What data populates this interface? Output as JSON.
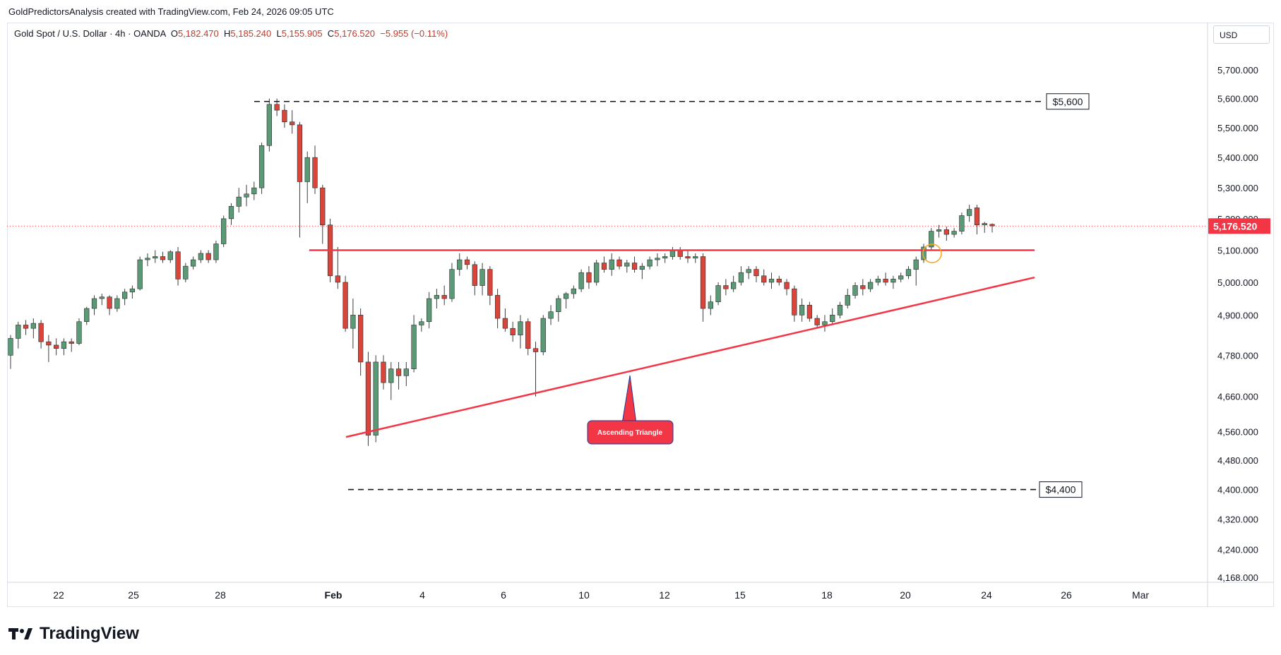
{
  "header": {
    "attribution": "GoldPredictorsAnalysis created with TradingView.com, Feb 24, 2026 09:05 UTC"
  },
  "legend": {
    "symbol": "Gold Spot / U.S. Dollar · 4h · OANDA",
    "open_label": "O",
    "open": "5,182.470",
    "high_label": "H",
    "high": "5,185.240",
    "low_label": "L",
    "low": "5,155.905",
    "close_label": "C",
    "close": "5,176.520",
    "change": "−5.955 (−0.11%)"
  },
  "currency": "USD",
  "brand": {
    "name": "TradingView"
  },
  "colors": {
    "up": "#5b9a76",
    "down": "#d9453a",
    "trend": "#f23645",
    "grid": "#e0e3eb",
    "price_tag": "#f23645"
  },
  "chart_data": {
    "type": "candlestick",
    "timeframe": "4h",
    "instrument": "Gold Spot / U.S. Dollar",
    "x_tick_labels": [
      "22",
      "25",
      "28",
      "Feb",
      "4",
      "6",
      "10",
      "12",
      "15",
      "18",
      "20",
      "24",
      "26",
      "Mar"
    ],
    "y_tick_labels": [
      "5,700.000",
      "5,600.000",
      "5,500.000",
      "5,400.000",
      "5,300.000",
      "5,200.000",
      "5,100.000",
      "5,000.000",
      "4,900.000",
      "4,780.000",
      "4,660.000",
      "4,560.000",
      "4,480.000",
      "4,400.000",
      "4,320.000",
      "4,240.000",
      "4,168.000"
    ],
    "y_ticks": [
      5700,
      5600,
      5500,
      5400,
      5300,
      5200,
      5100,
      5000,
      4900,
      4780,
      4660,
      4560,
      4480,
      4400,
      4320,
      4240,
      4168
    ],
    "scale": "log",
    "ylim": [
      4168,
      5760
    ],
    "current_price": 5176.52,
    "current_price_label": "5,176.520",
    "levels": [
      {
        "label": "$5,600",
        "value": 5590
      },
      {
        "label": "$4,400",
        "value": 4400
      }
    ],
    "horizontal_resistance": 5100,
    "pattern_label": "Ascending Triangle",
    "candles": [
      [
        4780,
        4840,
        4740,
        4830
      ],
      [
        4830,
        4880,
        4800,
        4870
      ],
      [
        4870,
        4885,
        4840,
        4860
      ],
      [
        4860,
        4890,
        4830,
        4875
      ],
      [
        4875,
        4885,
        4800,
        4820
      ],
      [
        4820,
        4840,
        4760,
        4810
      ],
      [
        4810,
        4830,
        4780,
        4800
      ],
      [
        4800,
        4830,
        4780,
        4820
      ],
      [
        4820,
        4830,
        4790,
        4815
      ],
      [
        4815,
        4890,
        4810,
        4880
      ],
      [
        4880,
        4925,
        4870,
        4920
      ],
      [
        4920,
        4960,
        4900,
        4950
      ],
      [
        4950,
        4965,
        4930,
        4955
      ],
      [
        4955,
        4960,
        4900,
        4920
      ],
      [
        4920,
        4960,
        4910,
        4950
      ],
      [
        4950,
        4980,
        4930,
        4970
      ],
      [
        4970,
        4990,
        4950,
        4980
      ],
      [
        4980,
        5080,
        4975,
        5070
      ],
      [
        5070,
        5090,
        5050,
        5075
      ],
      [
        5075,
        5100,
        5060,
        5080
      ],
      [
        5080,
        5095,
        5060,
        5070
      ],
      [
        5070,
        5100,
        5060,
        5095
      ],
      [
        5095,
        5110,
        4990,
        5010
      ],
      [
        5010,
        5060,
        5000,
        5050
      ],
      [
        5050,
        5080,
        5040,
        5070
      ],
      [
        5070,
        5100,
        5060,
        5090
      ],
      [
        5090,
        5100,
        5060,
        5070
      ],
      [
        5070,
        5130,
        5060,
        5120
      ],
      [
        5120,
        5210,
        5110,
        5200
      ],
      [
        5200,
        5250,
        5180,
        5240
      ],
      [
        5240,
        5300,
        5220,
        5270
      ],
      [
        5270,
        5310,
        5240,
        5280
      ],
      [
        5280,
        5320,
        5260,
        5300
      ],
      [
        5300,
        5450,
        5280,
        5440
      ],
      [
        5440,
        5600,
        5420,
        5580
      ],
      [
        5580,
        5600,
        5540,
        5560
      ],
      [
        5560,
        5580,
        5500,
        5520
      ],
      [
        5520,
        5560,
        5480,
        5510
      ],
      [
        5510,
        5520,
        5140,
        5320
      ],
      [
        5320,
        5420,
        5250,
        5400
      ],
      [
        5400,
        5440,
        5280,
        5300
      ],
      [
        5300,
        5310,
        5120,
        5180
      ],
      [
        5180,
        5200,
        5000,
        5020
      ],
      [
        5020,
        5110,
        4980,
        5000
      ],
      [
        5000,
        5020,
        4850,
        4860
      ],
      [
        4860,
        4950,
        4800,
        4900
      ],
      [
        4900,
        4920,
        4720,
        4760
      ],
      [
        4760,
        4790,
        4520,
        4550
      ],
      [
        4550,
        4780,
        4530,
        4760
      ],
      [
        4760,
        4780,
        4680,
        4700
      ],
      [
        4700,
        4760,
        4650,
        4740
      ],
      [
        4740,
        4760,
        4680,
        4720
      ],
      [
        4720,
        4760,
        4690,
        4740
      ],
      [
        4740,
        4900,
        4730,
        4870
      ],
      [
        4870,
        4890,
        4850,
        4880
      ],
      [
        4880,
        4970,
        4860,
        4950
      ],
      [
        4950,
        4980,
        4920,
        4960
      ],
      [
        4960,
        4990,
        4930,
        4950
      ],
      [
        4950,
        5060,
        4940,
        5040
      ],
      [
        5040,
        5090,
        5020,
        5070
      ],
      [
        5070,
        5080,
        5040,
        5055
      ],
      [
        5055,
        5065,
        4960,
        4990
      ],
      [
        4990,
        5060,
        4960,
        5040
      ],
      [
        5040,
        5050,
        4930,
        4960
      ],
      [
        4960,
        4980,
        4860,
        4890
      ],
      [
        4890,
        4920,
        4850,
        4860
      ],
      [
        4860,
        4880,
        4820,
        4840
      ],
      [
        4840,
        4900,
        4800,
        4880
      ],
      [
        4880,
        4890,
        4780,
        4800
      ],
      [
        4800,
        4820,
        4660,
        4790
      ],
      [
        4790,
        4900,
        4780,
        4890
      ],
      [
        4890,
        4930,
        4870,
        4910
      ],
      [
        4910,
        4960,
        4880,
        4950
      ],
      [
        4950,
        4970,
        4920,
        4965
      ],
      [
        4965,
        4990,
        4950,
        4980
      ],
      [
        4980,
        5040,
        4970,
        5030
      ],
      [
        5030,
        5050,
        4980,
        5000
      ],
      [
        5000,
        5070,
        4990,
        5060
      ],
      [
        5060,
        5080,
        5030,
        5040
      ],
      [
        5040,
        5090,
        5020,
        5070
      ],
      [
        5070,
        5080,
        5040,
        5050
      ],
      [
        5050,
        5070,
        5030,
        5060
      ],
      [
        5060,
        5080,
        5030,
        5040
      ],
      [
        5040,
        5060,
        5010,
        5050
      ],
      [
        5050,
        5080,
        5040,
        5070
      ],
      [
        5070,
        5090,
        5050,
        5075
      ],
      [
        5075,
        5090,
        5060,
        5080
      ],
      [
        5080,
        5110,
        5070,
        5100
      ],
      [
        5100,
        5110,
        5070,
        5080
      ],
      [
        5080,
        5100,
        5060,
        5075
      ],
      [
        5075,
        5090,
        5060,
        5080
      ],
      [
        5080,
        5090,
        4880,
        4920
      ],
      [
        4920,
        4960,
        4900,
        4940
      ],
      [
        4940,
        5000,
        4930,
        4990
      ],
      [
        4990,
        5010,
        4960,
        4980
      ],
      [
        4980,
        5020,
        4970,
        5000
      ],
      [
        5000,
        5050,
        4990,
        5030
      ],
      [
        5030,
        5050,
        5010,
        5040
      ],
      [
        5040,
        5050,
        5000,
        5020
      ],
      [
        5020,
        5040,
        4990,
        5000
      ],
      [
        5000,
        5030,
        4980,
        5010
      ],
      [
        5010,
        5020,
        4990,
        5000
      ],
      [
        5000,
        5010,
        4960,
        4980
      ],
      [
        4980,
        4990,
        4880,
        4900
      ],
      [
        4900,
        4950,
        4880,
        4930
      ],
      [
        4930,
        4940,
        4880,
        4890
      ],
      [
        4890,
        4900,
        4860,
        4870
      ],
      [
        4870,
        4900,
        4850,
        4880
      ],
      [
        4880,
        4920,
        4870,
        4900
      ],
      [
        4900,
        4940,
        4890,
        4930
      ],
      [
        4930,
        4980,
        4920,
        4960
      ],
      [
        4960,
        5000,
        4950,
        4990
      ],
      [
        4990,
        5010,
        4960,
        4980
      ],
      [
        4980,
        5010,
        4970,
        5000
      ],
      [
        5000,
        5020,
        4990,
        5010
      ],
      [
        5010,
        5030,
        4990,
        5000
      ],
      [
        5000,
        5020,
        4980,
        5010
      ],
      [
        5010,
        5030,
        5000,
        5020
      ],
      [
        5020,
        5050,
        5010,
        5040
      ],
      [
        5040,
        5080,
        4990,
        5070
      ],
      [
        5070,
        5120,
        5060,
        5110
      ],
      [
        5110,
        5170,
        5100,
        5160
      ],
      [
        5160,
        5180,
        5140,
        5165
      ],
      [
        5165,
        5175,
        5130,
        5150
      ],
      [
        5150,
        5170,
        5140,
        5160
      ],
      [
        5160,
        5220,
        5150,
        5210
      ],
      [
        5210,
        5245,
        5190,
        5230
      ],
      [
        5235,
        5245,
        5150,
        5180
      ],
      [
        5180,
        5190,
        5155,
        5185
      ],
      [
        5182,
        5185,
        5156,
        5177
      ]
    ]
  }
}
